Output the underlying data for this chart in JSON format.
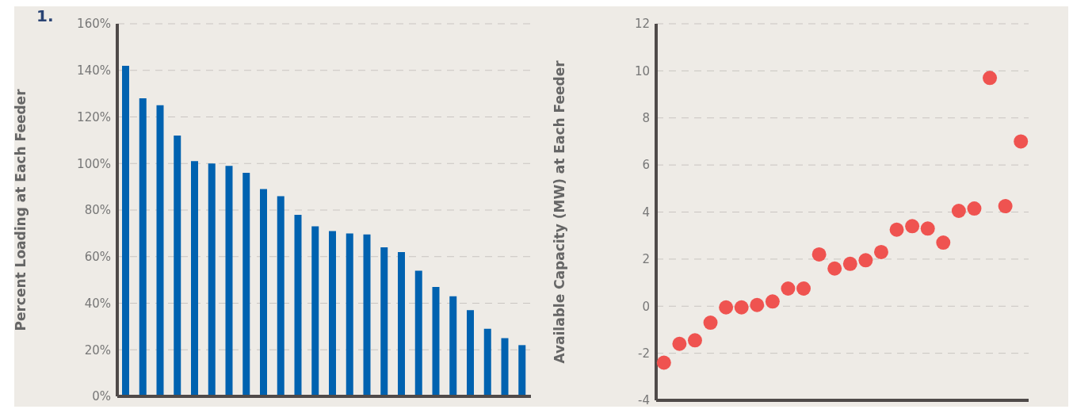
{
  "chart_data": [
    {
      "type": "bar",
      "ylabel": "Percent Loading at Each Feeder",
      "annotations": [
        "1."
      ],
      "categories": [
        null,
        null,
        null,
        null,
        null,
        null,
        null,
        null,
        null,
        null,
        null,
        null,
        null,
        null,
        null,
        null,
        null,
        null,
        null,
        null,
        null,
        null,
        null,
        null
      ],
      "series": [
        {
          "color": "#0062b0",
          "values": [
            142,
            128,
            125,
            112,
            101,
            100,
            99,
            96,
            89,
            86,
            78,
            73,
            71,
            70,
            69.5,
            64,
            62,
            54,
            47,
            43,
            37,
            29,
            25,
            22
          ]
        }
      ],
      "ylim": [
        0,
        160
      ],
      "yticks": [
        {
          "value": 0,
          "label": "0%"
        },
        {
          "value": 20,
          "label": "20%"
        },
        {
          "value": 40,
          "label": "40%"
        },
        {
          "value": 60,
          "label": "60%"
        },
        {
          "value": 80,
          "label": "80%"
        },
        {
          "value": 100,
          "label": "100%"
        },
        {
          "value": 120,
          "label": "120%"
        },
        {
          "value": 140,
          "label": "140%"
        },
        {
          "value": 160,
          "label": "160%"
        }
      ],
      "grid": "y",
      "tick_labels": "y"
    },
    {
      "type": "scatter",
      "ylabel": "Available Capacity (MW) at Each Feeder",
      "categories": [
        null,
        null,
        null,
        null,
        null,
        null,
        null,
        null,
        null,
        null,
        null,
        null,
        null,
        null,
        null,
        null,
        null,
        null,
        null,
        null,
        null,
        null,
        null,
        null
      ],
      "series": [
        {
          "color": "#ef5350",
          "values": [
            -2.4,
            -1.6,
            -1.45,
            -0.7,
            -0.05,
            -0.05,
            0.05,
            0.2,
            0.75,
            0.75,
            2.2,
            1.6,
            1.8,
            1.95,
            2.3,
            3.25,
            3.4,
            3.3,
            2.7,
            4.05,
            4.15,
            9.7,
            4.25,
            7.0
          ]
        }
      ],
      "ylim": [
        -4,
        12
      ],
      "yticks": [
        -4,
        -2,
        0,
        2,
        4,
        6,
        8,
        10,
        12
      ],
      "grid": "y",
      "tick_labels": "y",
      "marker": "circle"
    }
  ]
}
